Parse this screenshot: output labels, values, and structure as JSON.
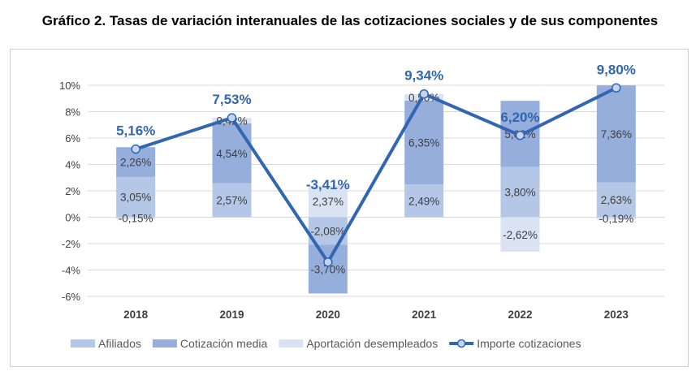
{
  "chart_data": {
    "type": "bar",
    "stacked": true,
    "title": "Gráfico 2. Tasas de variación interanuales de las cotizaciones sociales y de sus componentes",
    "categories": [
      "2018",
      "2019",
      "2020",
      "2021",
      "2022",
      "2023"
    ],
    "series": [
      {
        "name": "Afiliados",
        "kind": "bar",
        "color": "#b4c7e7",
        "values": [
          3.05,
          2.57,
          -2.08,
          2.49,
          3.8,
          2.63
        ]
      },
      {
        "name": "Cotización media",
        "kind": "bar",
        "color": "#95aedb",
        "values": [
          2.26,
          4.54,
          -3.7,
          6.35,
          5.02,
          7.36
        ]
      },
      {
        "name": "Aportación desempleados",
        "kind": "bar",
        "color": "#dae3f3",
        "values": [
          -0.15,
          0.42,
          2.37,
          0.5,
          -2.62,
          -0.19
        ]
      },
      {
        "name": "Importe cotizaciones",
        "kind": "line",
        "color": "#3166b1",
        "values": [
          5.16,
          7.53,
          -3.41,
          9.34,
          6.2,
          9.8
        ]
      }
    ],
    "ylim": [
      -6,
      10
    ],
    "yticks": [
      "-6%",
      "-4%",
      "-2%",
      "0%",
      "2%",
      "4%",
      "6%",
      "8%",
      "10%"
    ],
    "grid": true,
    "legend": "bottom"
  }
}
